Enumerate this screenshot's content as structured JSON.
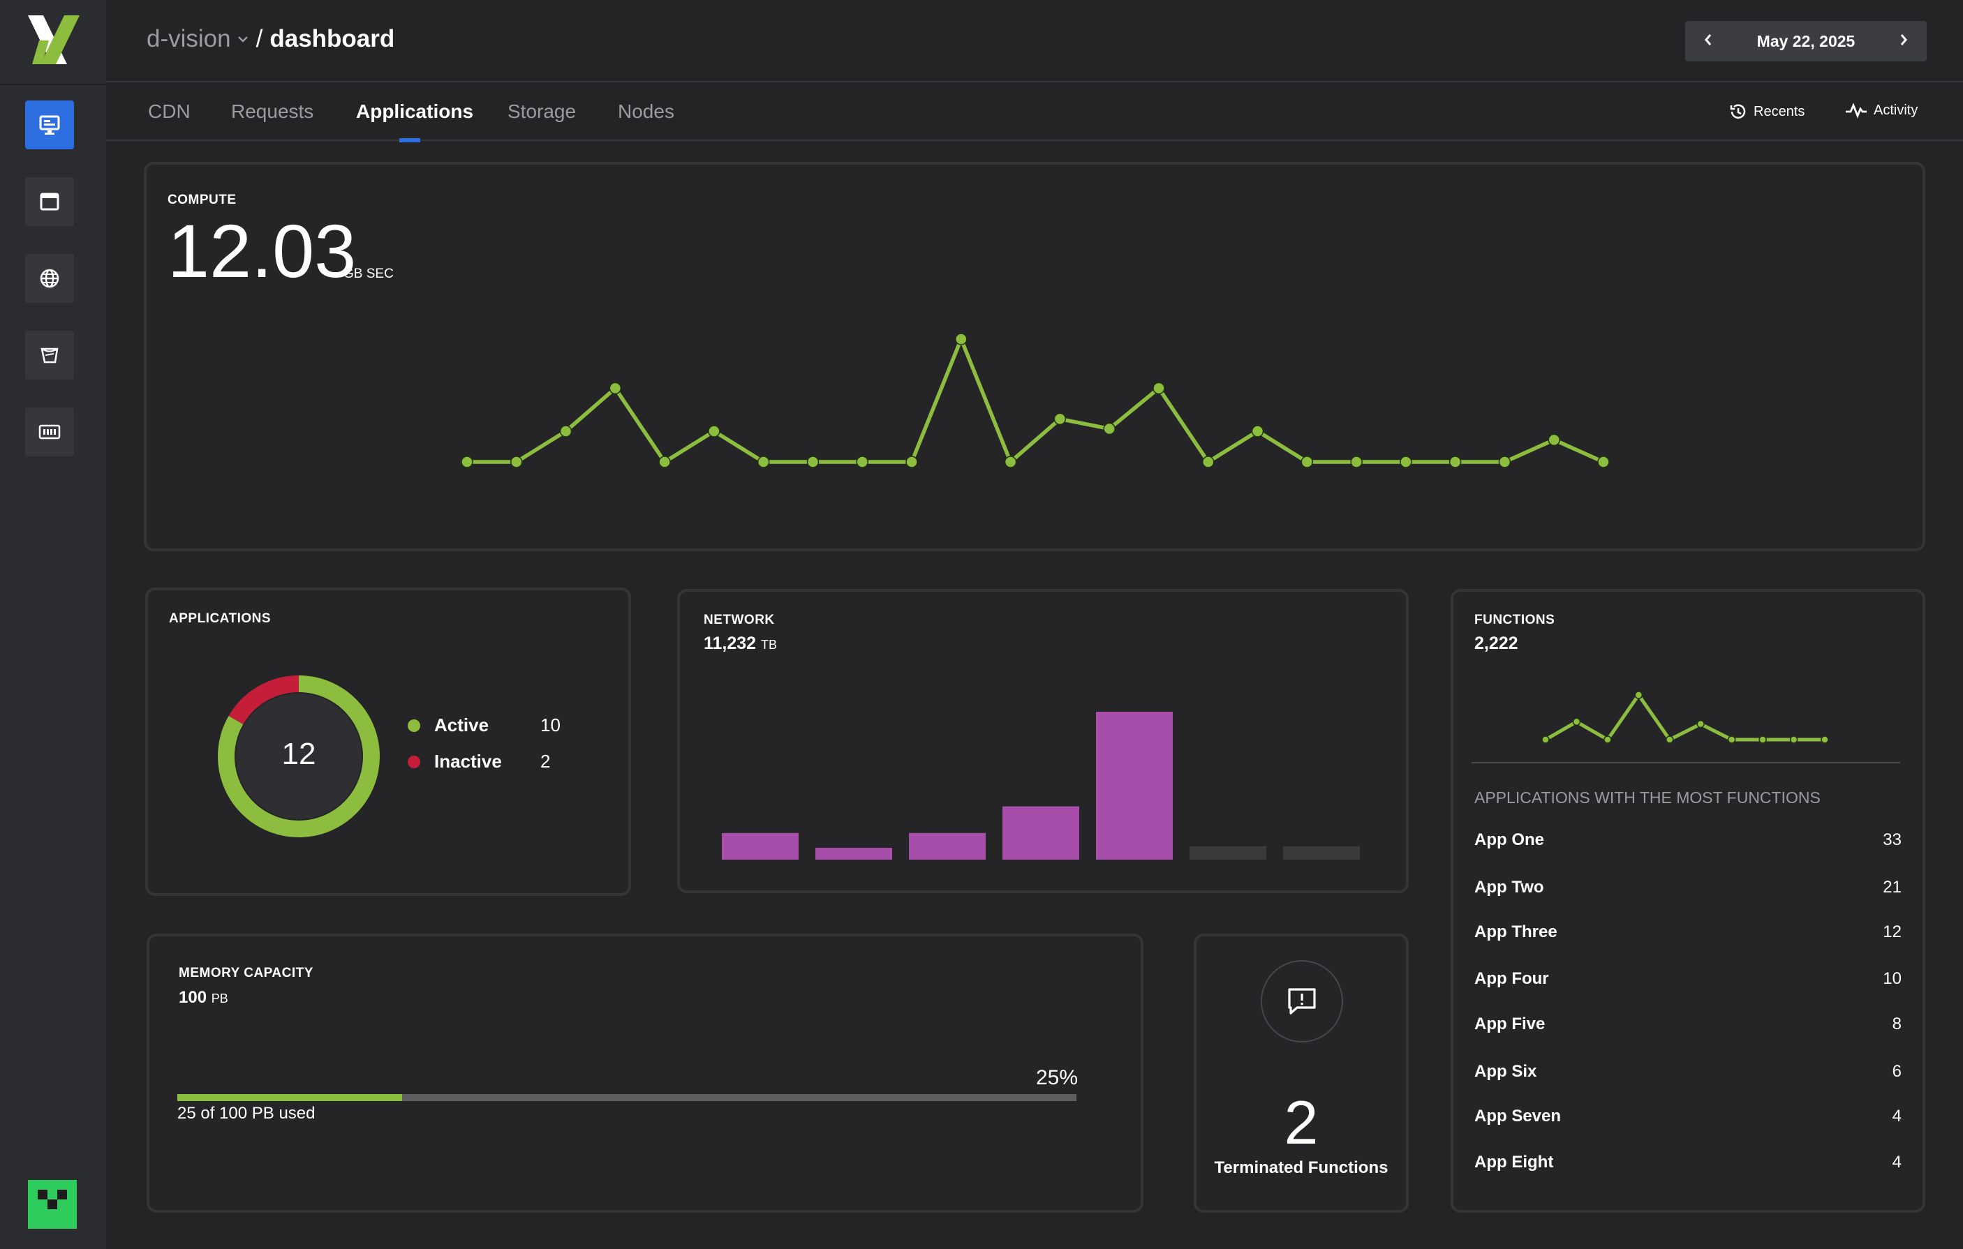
{
  "app": {
    "workspace": "d-vision",
    "separator": "/",
    "page": "dashboard"
  },
  "date": {
    "label": "May 22, 2025"
  },
  "tabs": [
    {
      "label": "CDN"
    },
    {
      "label": "Requests"
    },
    {
      "label": "Applications",
      "active": true
    },
    {
      "label": "Storage"
    },
    {
      "label": "Nodes"
    }
  ],
  "actions": {
    "recents": "Recents",
    "activity": "Activity"
  },
  "sidebar": {
    "items": [
      {
        "icon": "monitor-icon",
        "active": true
      },
      {
        "icon": "window-icon"
      },
      {
        "icon": "globe-icon"
      },
      {
        "icon": "bucket-icon"
      },
      {
        "icon": "memory-chip-icon"
      }
    ]
  },
  "compute": {
    "title": "COMPUTE",
    "value": "12.03",
    "unit": "GB SEC"
  },
  "applications": {
    "title": "APPLICATIONS",
    "total": "12",
    "active_label": "Active",
    "active_count": "10",
    "inactive_label": "Inactive",
    "inactive_count": "2"
  },
  "network": {
    "title": "NETWORK",
    "value": "11,232",
    "unit": "TB"
  },
  "functions": {
    "title": "FUNCTIONS",
    "value": "2,222",
    "list_title": "APPLICATIONS WITH THE MOST FUNCTIONS",
    "apps": [
      {
        "name": "App One",
        "count": "33"
      },
      {
        "name": "App Two",
        "count": "21"
      },
      {
        "name": "App Three",
        "count": "12"
      },
      {
        "name": "App Four",
        "count": "10"
      },
      {
        "name": "App Five",
        "count": "8"
      },
      {
        "name": "App Six",
        "count": "6"
      },
      {
        "name": "App Seven",
        "count": "4"
      },
      {
        "name": "App Eight",
        "count": "4"
      }
    ]
  },
  "memory": {
    "title": "MEMORY CAPACITY",
    "value": "100",
    "unit": "PB",
    "percent_label": "25%",
    "percent": 0.25,
    "used_label": "25 of 100 PB used"
  },
  "terminated": {
    "count": "2",
    "label": "Terminated Functions"
  },
  "colors": {
    "accent_green": "#8cbd3e",
    "inactive_red": "#c41e3a",
    "bar_magenta": "#a64ea9",
    "bar_empty": "#3a3a3d",
    "active_blue": "#2d6fe0"
  },
  "chart_data": [
    {
      "type": "line",
      "name": "compute",
      "x": [
        1,
        2,
        3,
        4,
        5,
        6,
        7,
        8,
        9,
        10,
        11,
        12,
        13,
        14,
        15,
        16,
        17,
        18,
        19,
        20,
        21,
        22,
        23,
        24
      ],
      "values": [
        0,
        0,
        0.25,
        0.6,
        0,
        0.25,
        0,
        0,
        0,
        0,
        1,
        0,
        0.35,
        0.27,
        0.6,
        0,
        0.25,
        0,
        0,
        0,
        0,
        0,
        0.18,
        0
      ],
      "ylim": [
        0,
        1
      ]
    },
    {
      "type": "bar",
      "name": "network",
      "categories": [
        "1",
        "2",
        "3",
        "4",
        "5",
        "6",
        "7"
      ],
      "values": [
        0.18,
        0.08,
        0.18,
        0.36,
        1.0,
        0.09,
        0.09
      ],
      "empty_flags": [
        false,
        false,
        false,
        false,
        false,
        true,
        true
      ],
      "ylim": [
        0,
        1
      ]
    },
    {
      "type": "line",
      "name": "functions",
      "x": [
        1,
        2,
        3,
        4,
        5,
        6,
        7,
        8,
        9,
        10
      ],
      "values": [
        0,
        0.4,
        0,
        1,
        0,
        0.35,
        0,
        0,
        0,
        0
      ],
      "ylim": [
        0,
        1
      ]
    },
    {
      "type": "pie",
      "name": "applications",
      "categories": [
        "Active",
        "Inactive"
      ],
      "values": [
        10,
        2
      ]
    }
  ]
}
